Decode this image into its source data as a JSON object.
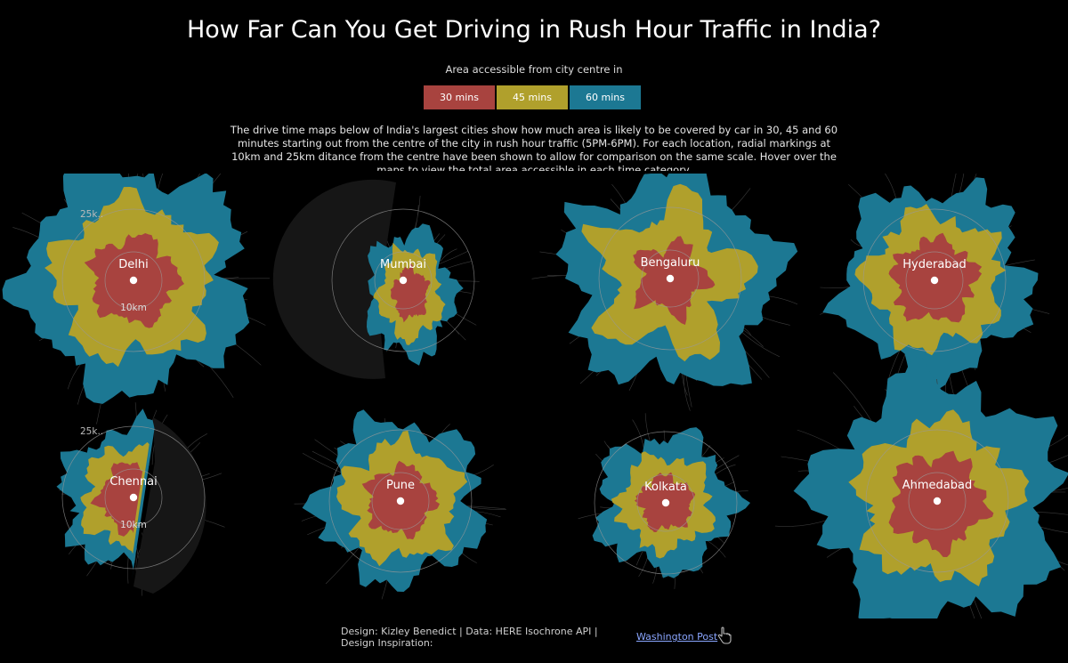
{
  "header": {
    "title": "How Far Can You Get Driving in Rush Hour Traffic in India?",
    "legend_caption": "Area accessible from city centre in",
    "legend": [
      {
        "label": "30 mins",
        "color": "#a8433f"
      },
      {
        "label": "45 mins",
        "color": "#b0a02c"
      },
      {
        "label": "60 mins",
        "color": "#1c7893"
      }
    ],
    "description": "The drive time maps below of India's largest cities show how much area is likely to be covered by car in 30, 45 and 60 minutes starting out from the centre of the city in rush hour traffic (5PM-6PM). For each location, radial markings at 10km and 25km ditance from the centre have been shown to allow for comparison on the same scale. Hover over the maps to view the total area accessible in each time category."
  },
  "chart_data": {
    "type": "isochrone-maps",
    "ring_labels": {
      "outer": "25k..",
      "inner": "10km"
    },
    "cities": [
      {
        "name": "Delhi",
        "show_ring_labels": true
      },
      {
        "name": "Mumbai",
        "show_ring_labels": false,
        "coastal": true
      },
      {
        "name": "Bengaluru",
        "show_ring_labels": false
      },
      {
        "name": "Hyderabad",
        "show_ring_labels": false
      },
      {
        "name": "Chennai",
        "show_ring_labels": true,
        "coastal": true
      },
      {
        "name": "Pune",
        "show_ring_labels": false
      },
      {
        "name": "Kolkata",
        "show_ring_labels": false
      },
      {
        "name": "Ahmedabad",
        "show_ring_labels": false
      }
    ]
  },
  "footer": {
    "credits": "Design: Kizley Benedict | Data: HERE Isochrone API | Design Inspiration:",
    "link_text": "Washington Post",
    "link_icon": "pointer-hand-icon"
  }
}
